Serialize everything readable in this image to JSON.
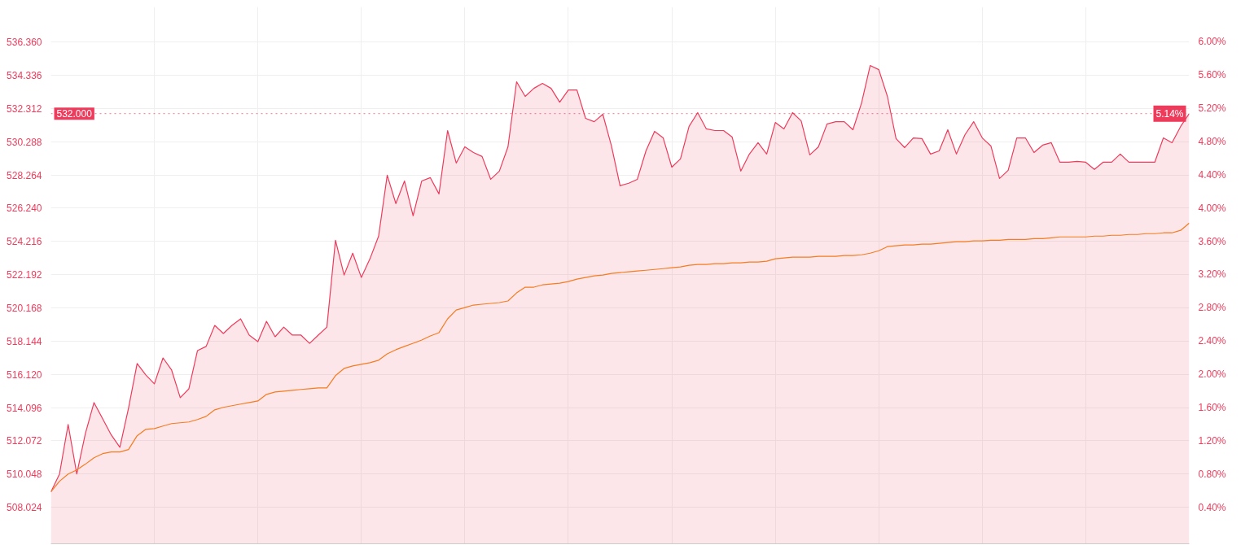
{
  "chart_data": {
    "type": "line",
    "categories": [
      null,
      null,
      null,
      null,
      null,
      null,
      null,
      null,
      null,
      null,
      null,
      null,
      null,
      null,
      null,
      null,
      null,
      null,
      null,
      null,
      null,
      null,
      null,
      null,
      null,
      null,
      null,
      null,
      null,
      null,
      null,
      null,
      null,
      null,
      null,
      null,
      null,
      null,
      null,
      null,
      null,
      null,
      null,
      null,
      null,
      null,
      null,
      null,
      null,
      null,
      null,
      null,
      null,
      null,
      null,
      null,
      null,
      null,
      null,
      null,
      null,
      null,
      null,
      null,
      null,
      null,
      null,
      null,
      null,
      null,
      null,
      null,
      null,
      null,
      null,
      null,
      null,
      null,
      null,
      null,
      null,
      null,
      null,
      null,
      null,
      null,
      null,
      null,
      null,
      null,
      null,
      null,
      null,
      null,
      null,
      null,
      null,
      null,
      null,
      null,
      null,
      null,
      null,
      null,
      null,
      null,
      null,
      null,
      null,
      null,
      null,
      null,
      null,
      null,
      null,
      null,
      null,
      null,
      null,
      null,
      null,
      null,
      null,
      null,
      null,
      null,
      null,
      null,
      null,
      null,
      null,
      null,
      null
    ],
    "series": [
      {
        "type": "area",
        "color": "#ee3b5b",
        "values": [
          508.96,
          510.05,
          513.07,
          510.05,
          512.52,
          514.4,
          513.42,
          512.43,
          511.68,
          514.06,
          516.78,
          516.09,
          515.54,
          517.12,
          516.38,
          514.7,
          515.24,
          517.57,
          517.82,
          519.1,
          518.61,
          519.1,
          519.5,
          518.51,
          518.11,
          519.35,
          518.41,
          519.0,
          518.51,
          518.51,
          518.01,
          518.51,
          519.0,
          524.29,
          522.17,
          523.5,
          522.02,
          523.16,
          524.54,
          528.25,
          526.52,
          527.9,
          525.78,
          527.9,
          528.1,
          527.11,
          530.97,
          528.99,
          529.98,
          529.63,
          529.39,
          528.0,
          528.5,
          529.98,
          533.94,
          533.05,
          533.54,
          533.84,
          533.54,
          532.7,
          533.44,
          533.44,
          531.71,
          531.51,
          531.96,
          530.03,
          527.61,
          527.76,
          528.0,
          529.73,
          530.92,
          530.52,
          528.74,
          529.24,
          531.22,
          532.06,
          531.07,
          530.97,
          530.97,
          530.57,
          528.5,
          529.54,
          530.23,
          529.54,
          531.46,
          531.07,
          532.06,
          531.56,
          529.49,
          529.98,
          531.37,
          531.51,
          531.51,
          531.02,
          532.65,
          534.93,
          534.68,
          533.05,
          530.48,
          529.93,
          530.52,
          530.48,
          529.54,
          529.73,
          531.02,
          529.54,
          530.72,
          531.51,
          530.52,
          530.03,
          528.05,
          528.55,
          530.52,
          530.52,
          529.63,
          530.08,
          530.23,
          529.04,
          529.04,
          529.09,
          529.04,
          528.6,
          529.04,
          529.04,
          529.54,
          529.04,
          529.04,
          529.04,
          529.04,
          530.52,
          530.23,
          531.22,
          532.0
        ]
      },
      {
        "color": "#f57c1f",
        "values": [
          508.96,
          509.61,
          510.05,
          510.3,
          510.65,
          511.04,
          511.29,
          511.39,
          511.39,
          511.54,
          512.38,
          512.77,
          512.82,
          512.97,
          513.12,
          513.17,
          513.22,
          513.37,
          513.56,
          513.96,
          514.11,
          514.21,
          514.31,
          514.4,
          514.5,
          514.9,
          515.05,
          515.1,
          515.15,
          515.2,
          515.24,
          515.29,
          515.29,
          516.04,
          516.48,
          516.63,
          516.73,
          516.83,
          516.98,
          517.37,
          517.62,
          517.82,
          518.01,
          518.21,
          518.46,
          518.66,
          519.5,
          520.04,
          520.19,
          520.34,
          520.39,
          520.44,
          520.49,
          520.59,
          521.08,
          521.43,
          521.43,
          521.57,
          521.62,
          521.67,
          521.77,
          521.92,
          522.02,
          522.12,
          522.17,
          522.27,
          522.32,
          522.37,
          522.42,
          522.46,
          522.51,
          522.56,
          522.61,
          522.66,
          522.76,
          522.81,
          522.81,
          522.86,
          522.86,
          522.91,
          522.91,
          522.96,
          522.96,
          523.01,
          523.16,
          523.21,
          523.26,
          523.26,
          523.26,
          523.31,
          523.31,
          523.31,
          523.36,
          523.36,
          523.4,
          523.5,
          523.65,
          523.9,
          523.95,
          524.0,
          524.0,
          524.05,
          524.05,
          524.1,
          524.15,
          524.2,
          524.2,
          524.25,
          524.25,
          524.29,
          524.29,
          524.34,
          524.34,
          524.34,
          524.39,
          524.39,
          524.44,
          524.49,
          524.49,
          524.49,
          524.49,
          524.54,
          524.54,
          524.59,
          524.59,
          524.64,
          524.64,
          524.69,
          524.69,
          524.74,
          524.74,
          524.89,
          525.33
        ]
      }
    ],
    "ylim": [
      505.8,
      538.5
    ],
    "yticks": [
      508.024,
      510.048,
      512.072,
      514.096,
      {
        "value": 516.12,
        "label": "516.120"
      },
      518.144,
      520.168,
      522.192,
      524.216,
      {
        "value": 526.24,
        "label": "526.240"
      },
      528.264,
      530.288,
      532.312,
      534.336,
      {
        "value": 536.36,
        "label": "536.360"
      }
    ],
    "y2lim": [
      -0.04,
      6.42
    ],
    "y2ticks": [
      {
        "value": 0.4,
        "label": "0.40%"
      },
      {
        "value": 0.8,
        "label": "0.80%"
      },
      {
        "value": 1.2,
        "label": "1.20%"
      },
      {
        "value": 1.6,
        "label": "1.60%"
      },
      {
        "value": 2.0,
        "label": "2.00%"
      },
      {
        "value": 2.4,
        "label": "2.40%"
      },
      {
        "value": 2.8,
        "label": "2.80%"
      },
      {
        "value": 3.2,
        "label": "3.20%"
      },
      {
        "value": 3.6,
        "label": "3.60%"
      },
      {
        "value": 4.0,
        "label": "4.00%"
      },
      {
        "value": 4.4,
        "label": "4.40%"
      },
      {
        "value": 4.8,
        "label": "4.80%"
      },
      {
        "value": 5.2,
        "label": "5.20%"
      },
      {
        "value": 5.6,
        "label": "5.60%"
      },
      {
        "value": 6.0,
        "label": "6.00%"
      }
    ],
    "ref_lines": [
      {
        "axis": "y",
        "value": 532.0,
        "label": "532.000",
        "color": "#ee3b5b",
        "line_style": "dotted"
      }
    ],
    "annotations": [
      {
        "text": "5.14%",
        "y": 532.0
      }
    ],
    "grid": true
  }
}
